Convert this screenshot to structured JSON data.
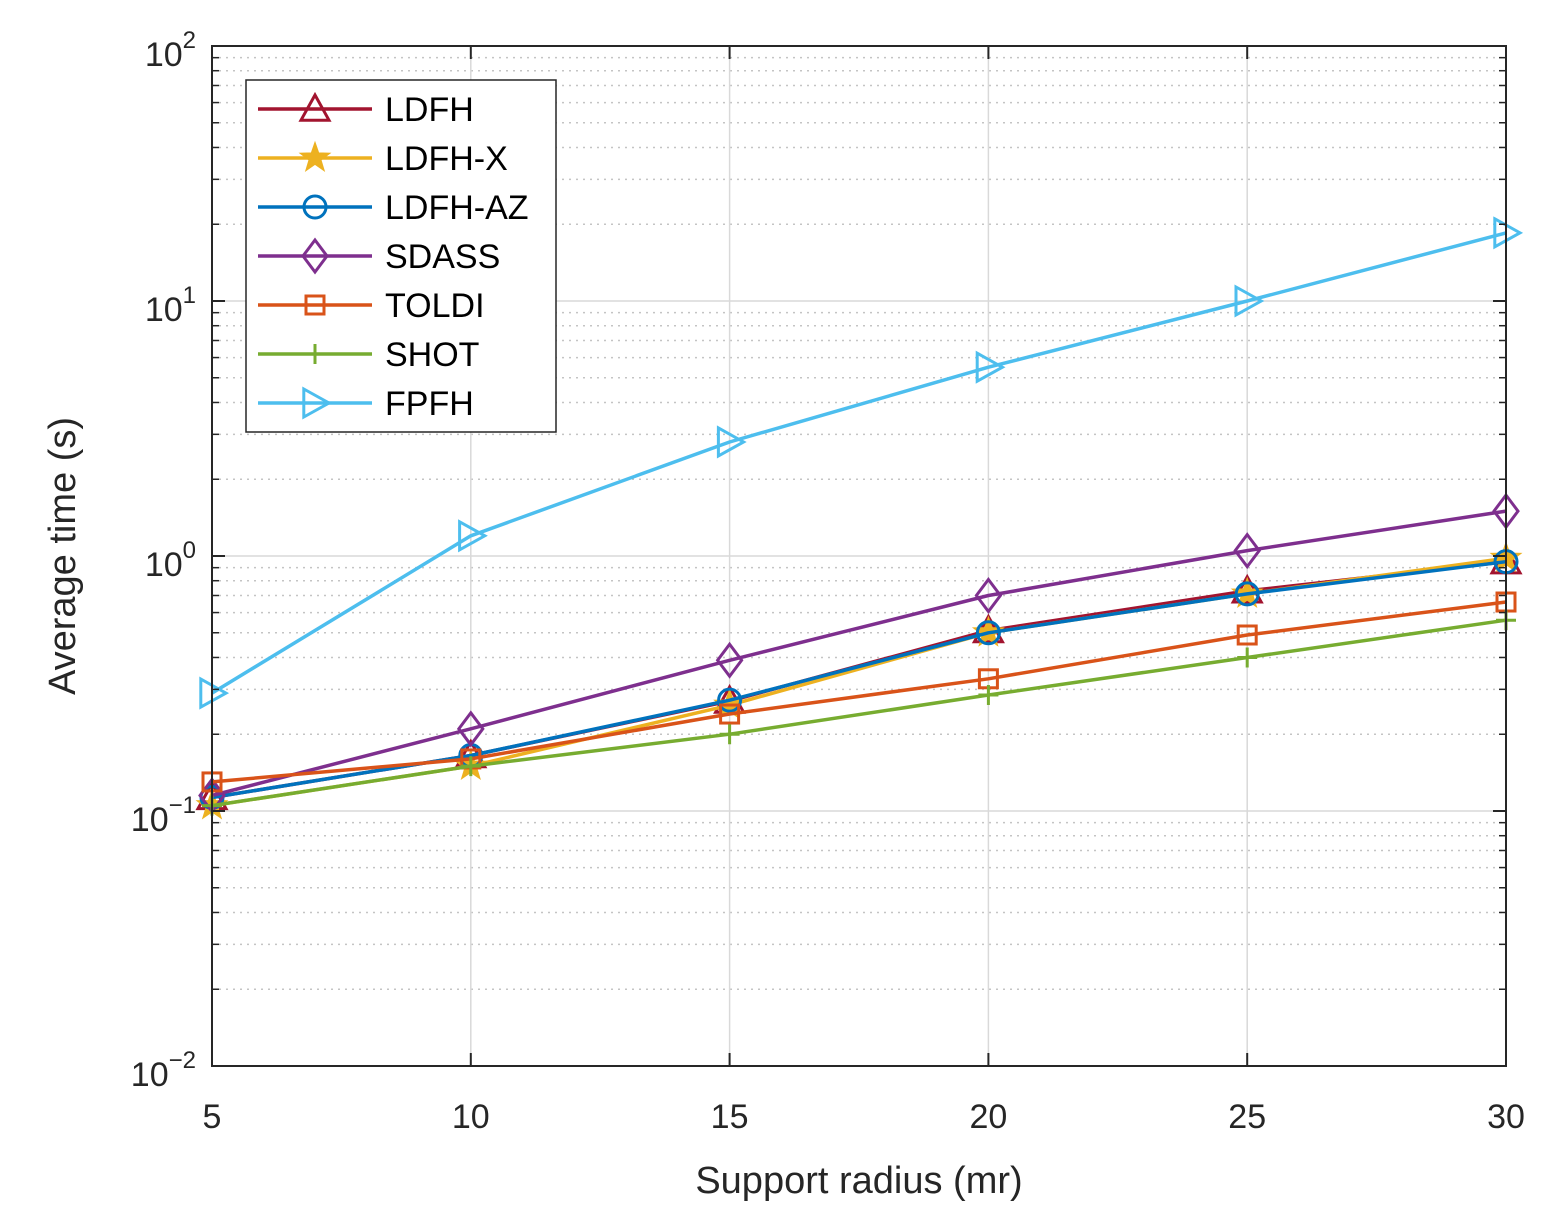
{
  "chart_data": {
    "type": "line",
    "xlabel": "Support radius (mr)",
    "ylabel": "Average time (s)",
    "xlim": [
      5,
      30
    ],
    "ylim": [
      0.01,
      100
    ],
    "yscale": "log",
    "grid": true,
    "legend_position": "top-left",
    "x_ticks": [
      "5",
      "10",
      "15",
      "20",
      "25",
      "30"
    ],
    "y_ticks": [
      {
        "base": "10",
        "exp": "−2"
      },
      {
        "base": "10",
        "exp": "−1"
      },
      {
        "base": "10",
        "exp": "0"
      },
      {
        "base": "10",
        "exp": "1"
      },
      {
        "base": "10",
        "exp": "2"
      }
    ],
    "x": [
      5,
      10,
      15,
      20,
      25,
      30
    ],
    "series": [
      {
        "name": "LDFH",
        "color": "#A2142F",
        "marker": "triangle-up",
        "values": [
          0.113,
          0.165,
          0.27,
          0.51,
          0.73,
          0.95
        ]
      },
      {
        "name": "LDFH-X",
        "color": "#EDB120",
        "marker": "star",
        "values": [
          0.105,
          0.15,
          0.26,
          0.5,
          0.71,
          0.98
        ]
      },
      {
        "name": "LDFH-AZ",
        "color": "#0072BD",
        "marker": "circle",
        "values": [
          0.113,
          0.165,
          0.272,
          0.5,
          0.71,
          0.95
        ]
      },
      {
        "name": "SDASS",
        "color": "#7E2F8E",
        "marker": "diamond",
        "values": [
          0.115,
          0.21,
          0.39,
          0.7,
          1.05,
          1.5
        ]
      },
      {
        "name": "TOLDI",
        "color": "#D95319",
        "marker": "square",
        "values": [
          0.13,
          0.16,
          0.24,
          0.33,
          0.49,
          0.66
        ]
      },
      {
        "name": "SHOT",
        "color": "#77AC30",
        "marker": "plus",
        "values": [
          0.105,
          0.15,
          0.2,
          0.285,
          0.4,
          0.56
        ]
      },
      {
        "name": "FPFH",
        "color": "#4DBEEE",
        "marker": "triangle-right",
        "values": [
          0.29,
          1.2,
          2.8,
          5.5,
          10,
          18.5
        ]
      }
    ]
  }
}
